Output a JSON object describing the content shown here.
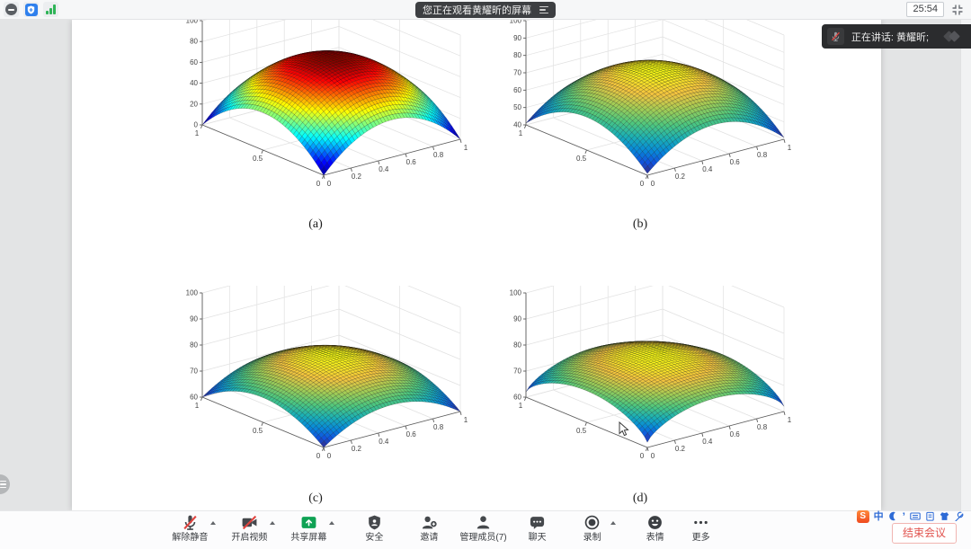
{
  "meeting": {
    "top_bar": {
      "watching_label": "您正在观看黄耀昕的屏幕",
      "timer": "25:54"
    },
    "speaking_toast": {
      "label": "正在讲话: 黄耀昕;"
    },
    "toolbar": {
      "buttons": [
        {
          "label": "解除静音",
          "icon": "mic-muted-icon",
          "has_caret": true
        },
        {
          "label": "开启视频",
          "icon": "camera-off-icon",
          "has_caret": true
        },
        {
          "label": "共享屏幕",
          "icon": "share-screen-icon",
          "has_caret": true
        },
        {
          "label": "安全",
          "icon": "security-shield-icon",
          "has_caret": false
        },
        {
          "label": "邀请",
          "icon": "invite-user-icon",
          "has_caret": false
        },
        {
          "label": "管理成员(7)",
          "icon": "members-icon",
          "has_caret": false
        },
        {
          "label": "聊天",
          "icon": "chat-bubble-icon",
          "has_caret": false
        },
        {
          "label": "录制",
          "icon": "record-icon",
          "has_caret": true
        },
        {
          "label": "表情",
          "icon": "emoji-icon",
          "has_caret": false
        },
        {
          "label": "更多",
          "icon": "more-dots-icon",
          "has_caret": false
        }
      ],
      "end_meeting_label": "结束会议"
    },
    "ime": {
      "logo": "S",
      "lang_label": "中",
      "punct_label": "’"
    }
  },
  "document": {
    "figures": [
      {
        "label": "(a)"
      },
      {
        "label": "(b)"
      },
      {
        "label": "(c)"
      },
      {
        "label": "(d)"
      }
    ]
  },
  "chart_data": [
    {
      "type": "surface",
      "figure_label": "(a)",
      "x_range": [
        0,
        1
      ],
      "y_range": [
        0,
        1
      ],
      "z_range": [
        0,
        100
      ],
      "x_ticks": [
        0,
        0.2,
        0.4,
        0.6,
        0.8,
        1
      ],
      "y_ticks": [
        0,
        0.5,
        1
      ],
      "z_ticks": [
        0,
        20,
        40,
        60,
        80,
        100
      ],
      "surface": {
        "formula": "z = base + amp*(2*(x*(1-x)+y*(1-y)))^p",
        "base": 0,
        "amp": 72,
        "p": 1
      },
      "peak_z": 72,
      "corner_z": 0,
      "colormap": "jet",
      "grid": true
    },
    {
      "type": "surface",
      "figure_label": "(b)",
      "x_range": [
        0,
        1
      ],
      "y_range": [
        0,
        1
      ],
      "z_range": [
        40,
        100
      ],
      "x_ticks": [
        0,
        0.2,
        0.4,
        0.6,
        0.8,
        1
      ],
      "y_ticks": [
        0,
        0.5,
        1
      ],
      "z_ticks": [
        40,
        50,
        60,
        70,
        80,
        90,
        100
      ],
      "surface": {
        "formula": "z = base + amp*(2*(x*(1-x)+y*(1-y)))^p",
        "base": 41,
        "amp": 36,
        "p": 1
      },
      "peak_z": 77,
      "corner_z": 41,
      "colormap": "parula",
      "grid": true
    },
    {
      "type": "surface",
      "figure_label": "(c)",
      "x_range": [
        0,
        1
      ],
      "y_range": [
        0,
        1
      ],
      "z_range": [
        60,
        100
      ],
      "x_ticks": [
        0,
        0.2,
        0.4,
        0.6,
        0.8,
        1
      ],
      "y_ticks": [
        0,
        0.5,
        1
      ],
      "z_ticks": [
        60,
        70,
        80,
        90,
        100
      ],
      "surface": {
        "formula": "z = base + amp*(2*(x*(1-x)+y*(1-y)))^p",
        "base": 60,
        "amp": 19,
        "p": 1
      },
      "peak_z": 79,
      "corner_z": 60,
      "colormap": "parula",
      "grid": true
    },
    {
      "type": "surface",
      "figure_label": "(d)",
      "x_range": [
        0,
        1
      ],
      "y_range": [
        0,
        1
      ],
      "z_range": [
        60,
        100
      ],
      "x_ticks": [
        0,
        0.2,
        0.4,
        0.6,
        0.8,
        1
      ],
      "y_ticks": [
        0,
        0.5,
        1
      ],
      "z_ticks": [
        60,
        70,
        80,
        90,
        100
      ],
      "surface": {
        "formula": "z = base + amp*(2*(x*(1-x)+y*(1-y)))^p",
        "base": 62,
        "amp": 17,
        "p": 0.75
      },
      "peak_z": 79,
      "corner_z": 62,
      "colormap": "parula",
      "grid": true
    }
  ]
}
